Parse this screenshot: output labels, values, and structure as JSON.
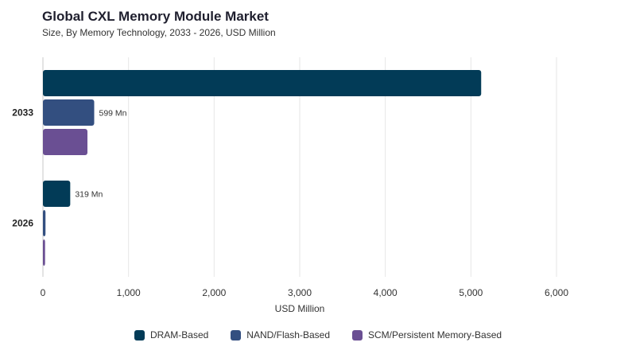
{
  "chart_data": {
    "type": "bar",
    "orientation": "horizontal",
    "title": "Global CXL Memory Module Market",
    "subtitle": "Size, By Memory Technology, 2033 - 2026, USD Million",
    "xlabel": "USD Million",
    "xlim": [
      0,
      6000
    ],
    "xticks": [
      0,
      1000,
      2000,
      3000,
      4000,
      5000,
      6000
    ],
    "xtick_labels": [
      "0",
      "1,000",
      "2,000",
      "3,000",
      "4,000",
      "5,000",
      "6,000"
    ],
    "grid": true,
    "legend_position": "bottom",
    "categories": [
      "2033",
      "2026"
    ],
    "series": [
      {
        "name": "DRAM-Based",
        "color": "#023b57",
        "values": [
          5120,
          319
        ],
        "labels": [
          "",
          "319 Mn"
        ]
      },
      {
        "name": "NAND/Flash-Based",
        "color": "#334f80",
        "values": [
          599,
          30
        ],
        "labels": [
          "599 Mn",
          ""
        ]
      },
      {
        "name": "SCM/Persistent Memory-Based",
        "color": "#6a4f93",
        "values": [
          520,
          25
        ],
        "labels": [
          "",
          ""
        ]
      }
    ]
  }
}
